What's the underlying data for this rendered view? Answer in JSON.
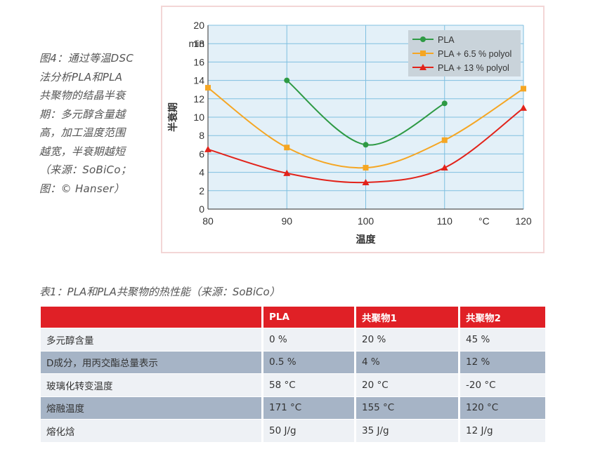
{
  "caption_lines": [
    "图4：通过等温DSC",
    "法分析PLA和PLA",
    "共聚物的结晶半衰",
    "期：多元醇含量越",
    "高，加工温度范围",
    "越宽，半衰期越短",
    "（来源：SoBiCo；",
    "图：© Hanser）"
  ],
  "chart_data": {
    "type": "line",
    "xlabel": "温度",
    "x_unit": "°C",
    "ylabel": "半衰期",
    "y_unit": "min",
    "xlim": [
      80,
      120
    ],
    "ylim": [
      0,
      20
    ],
    "x_ticks": [
      80,
      90,
      100,
      110,
      120
    ],
    "y_ticks": [
      0,
      2,
      4,
      6,
      8,
      10,
      12,
      14,
      16,
      18,
      20
    ],
    "grid": true,
    "legend_position": "top-right",
    "series": [
      {
        "name": "PLA",
        "color": "#2e9a44",
        "marker": "circle",
        "x": [
          90,
          100,
          110
        ],
        "y": [
          14,
          7,
          11.5
        ]
      },
      {
        "name": "PLA + 6.5 % polyol",
        "color": "#f5a623",
        "marker": "square",
        "x": [
          80,
          90,
          100,
          110,
          120
        ],
        "y": [
          13.2,
          6.7,
          4.5,
          7.5,
          13.1
        ]
      },
      {
        "name": "PLA + 13 % polyol",
        "color": "#e2231a",
        "marker": "triangle",
        "x": [
          80,
          90,
          100,
          110,
          120
        ],
        "y": [
          6.5,
          3.9,
          2.9,
          4.5,
          11
        ]
      }
    ]
  },
  "table": {
    "title": "表1：PLA和PLA共聚物的热性能（来源：SoBiCo）",
    "headers": [
      "",
      "PLA",
      "共聚物1",
      "共聚物2"
    ],
    "rows": [
      [
        "多元醇含量",
        "0 %",
        "20 %",
        "45 %"
      ],
      [
        "D成分，用丙交酯总量表示",
        "0.5 %",
        "4 %",
        "12 %"
      ],
      [
        "玻璃化转变温度",
        "58 °C",
        "20 °C",
        "-20 °C"
      ],
      [
        "熔融温度",
        "171 °C",
        "155 °C",
        "120 °C"
      ],
      [
        "熔化焓",
        "50 J/g",
        "35 J/g",
        "12 J/g"
      ]
    ]
  }
}
